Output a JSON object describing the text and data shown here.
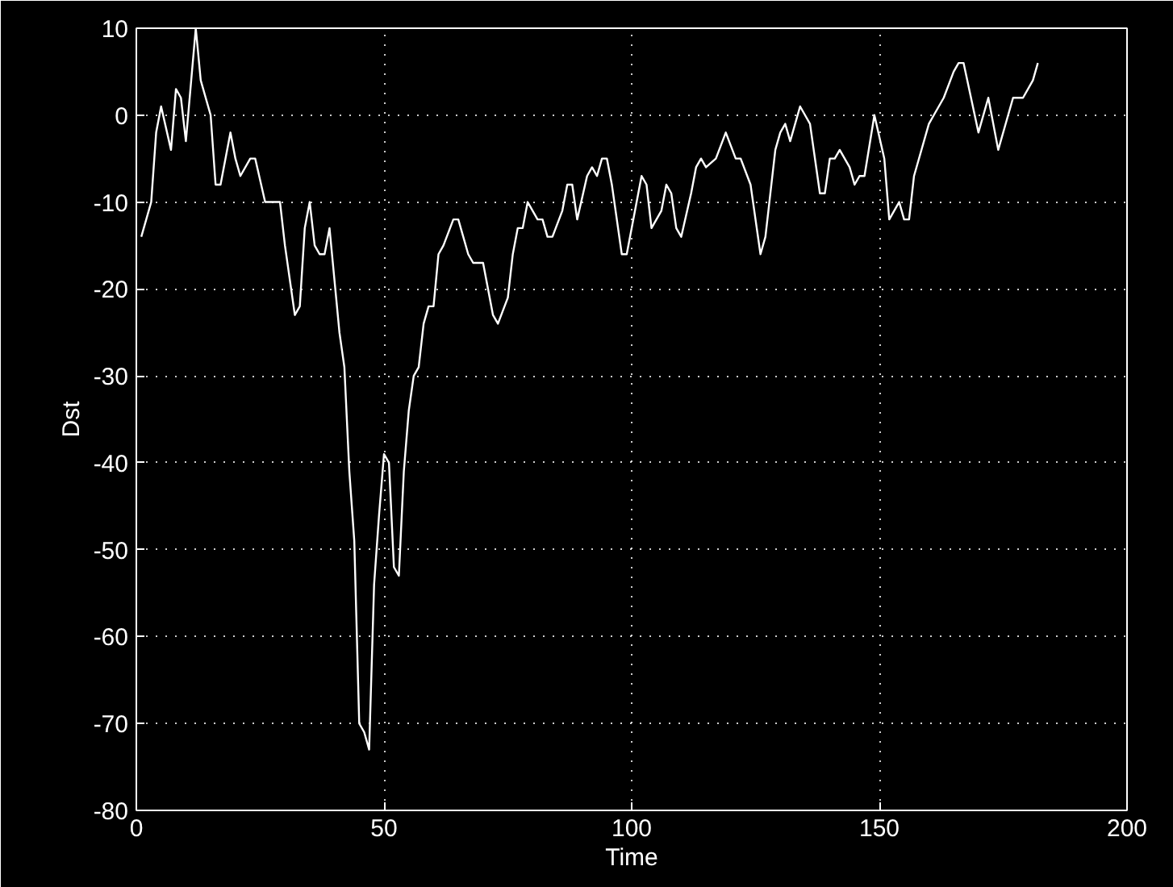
{
  "chart_data": {
    "type": "line",
    "xlabel": "Time",
    "ylabel": "Dst",
    "x": [
      1,
      2,
      3,
      4,
      5,
      7,
      8,
      9,
      10,
      12,
      13,
      15,
      16,
      17,
      19,
      20,
      21,
      23,
      24,
      26,
      28,
      29,
      30,
      32,
      33,
      34,
      35,
      36,
      37,
      38,
      39,
      41,
      42,
      43,
      44,
      45,
      46,
      47,
      48,
      49,
      50,
      51,
      52,
      53,
      54,
      55,
      56,
      57,
      58,
      59,
      60,
      61,
      62,
      64,
      65,
      66,
      67,
      68,
      69,
      70,
      72,
      73,
      75,
      76,
      77,
      78,
      79,
      81,
      82,
      83,
      84,
      86,
      87,
      88,
      89,
      91,
      92,
      93,
      94,
      95,
      96,
      98,
      99,
      101,
      102,
      103,
      104,
      106,
      107,
      108,
      109,
      110,
      112,
      113,
      114,
      115,
      117,
      119,
      121,
      122,
      124,
      125,
      126,
      127,
      129,
      130,
      131,
      132,
      134,
      135,
      136,
      138,
      139,
      140,
      141,
      142,
      144,
      145,
      146,
      147,
      149,
      151,
      152,
      154,
      155,
      156,
      157,
      160,
      161,
      163,
      165,
      166,
      167,
      170,
      172,
      174,
      177,
      179,
      181,
      182
    ],
    "values": [
      -14,
      -12,
      -10,
      -2,
      1,
      -4,
      3,
      2,
      -3,
      10,
      4,
      0,
      -8,
      -8,
      -2,
      -5,
      -7,
      -5,
      -5,
      -10,
      -10,
      -10,
      -15,
      -23,
      -22,
      -13,
      -10,
      -15,
      -16,
      -16,
      -13,
      -25,
      -29,
      -41,
      -49,
      -70,
      -71,
      -73,
      -54,
      -46,
      -39,
      -40,
      -52,
      -53,
      -41,
      -34,
      -30,
      -29,
      -24,
      -22,
      -22,
      -16,
      -15,
      -12,
      -12,
      -14,
      -16,
      -17,
      -17,
      -17,
      -23,
      -24,
      -21,
      -16,
      -13,
      -13,
      -10,
      -12,
      -12,
      -14,
      -14,
      -11,
      -8,
      -8,
      -12,
      -7,
      -6,
      -7,
      -5,
      -5,
      -8,
      -16,
      -16,
      -10,
      -7,
      -8,
      -13,
      -11,
      -8,
      -9,
      -13,
      -14,
      -9,
      -6,
      -5,
      -6,
      -5,
      -2,
      -5,
      -5,
      -8,
      -12,
      -16,
      -14,
      -4,
      -2,
      -1,
      -3,
      1,
      0,
      -1,
      -9,
      -9,
      -5,
      -5,
      -4,
      -6,
      -8,
      -7,
      -7,
      0,
      -5,
      -12,
      -10,
      -12,
      -12,
      -7,
      -1,
      0,
      2,
      5,
      6,
      6,
      -2,
      2,
      -4,
      2,
      2,
      4,
      6
    ],
    "color": "#ffffff",
    "xlim": [
      0,
      200
    ],
    "xticks": [
      0,
      50,
      100,
      150,
      200
    ],
    "ylim": [
      -80,
      10
    ],
    "yticks": [
      -80,
      -70,
      -60,
      -50,
      -40,
      -30,
      -20,
      -10,
      0,
      10
    ],
    "grid": true,
    "marker": "none",
    "line_style": "solid"
  }
}
